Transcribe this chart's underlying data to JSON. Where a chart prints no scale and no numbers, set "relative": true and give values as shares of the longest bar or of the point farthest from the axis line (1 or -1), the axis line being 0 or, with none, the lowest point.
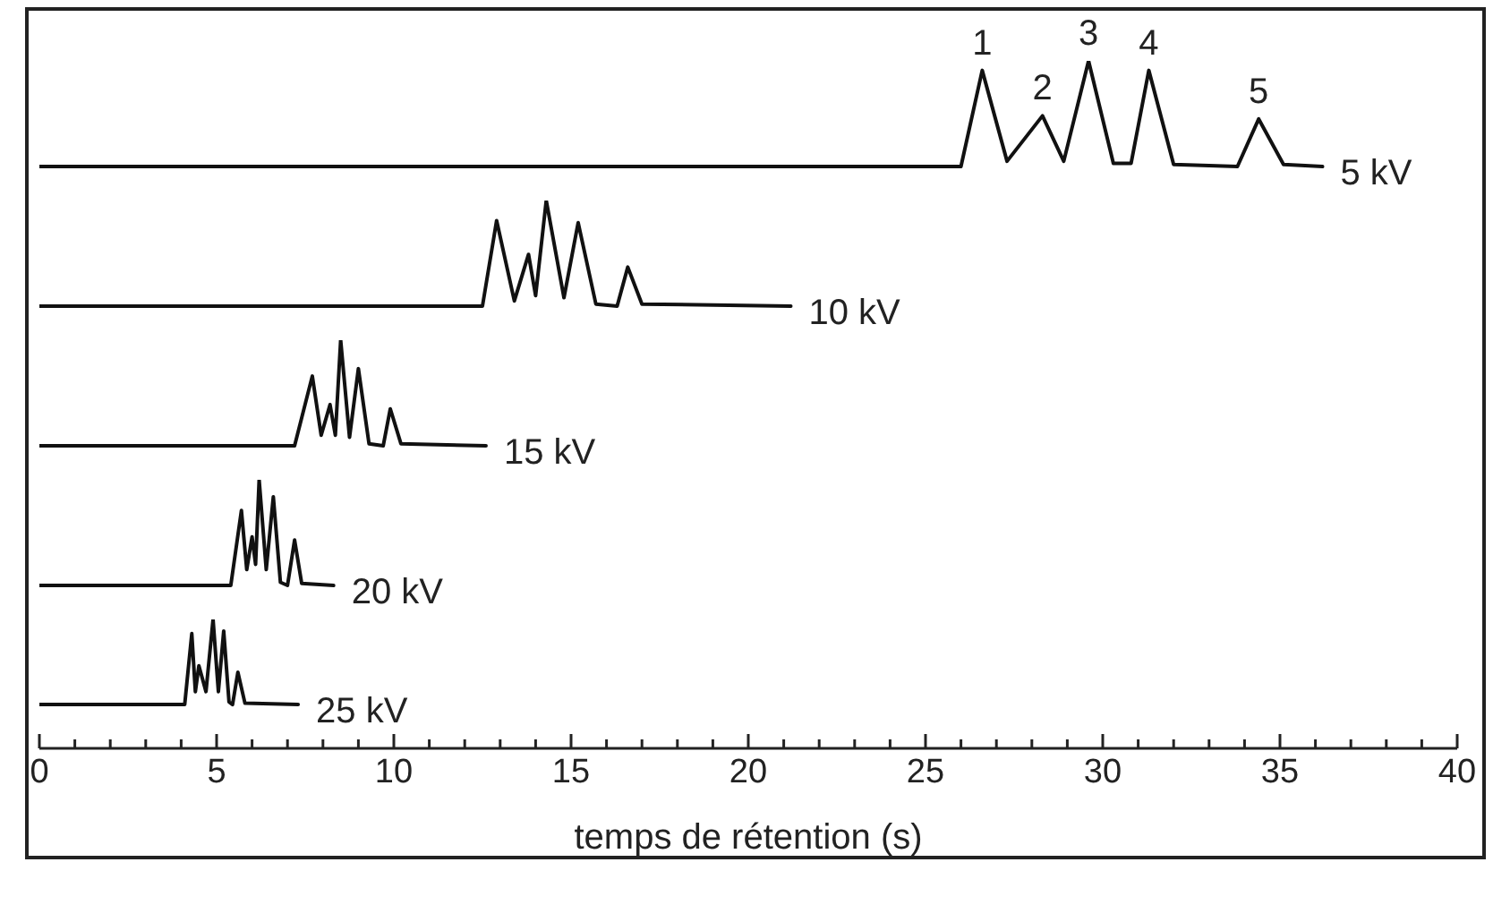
{
  "chart_data": [
    {
      "type": "line",
      "relative": true,
      "xlim": [
        0,
        40
      ],
      "tick_labels": false,
      "marker": "none",
      "series": [
        {
          "name": "5 kV",
          "color": "#111111",
          "x": [
            0,
            26.0,
            26.6,
            27.3,
            28.3,
            28.9,
            29.6,
            30.3,
            30.8,
            31.3,
            32.0,
            33.8,
            34.4,
            35.1,
            36.2
          ],
          "values": [
            0,
            0,
            0.91,
            0.05,
            0.48,
            0.05,
            1,
            0.03,
            0.03,
            0.91,
            0.02,
            0,
            0.45,
            0.02,
            0
          ]
        }
      ],
      "annotations": [
        {
          "text": "1",
          "x": 26.6,
          "y": 0.91
        },
        {
          "text": "2",
          "x": 28.3,
          "y": 0.48
        },
        {
          "text": "3",
          "x": 29.6,
          "y": 1
        },
        {
          "text": "4",
          "x": 31.3,
          "y": 0.91
        },
        {
          "text": "5",
          "x": 34.4,
          "y": 0.45
        }
      ]
    },
    {
      "type": "line",
      "relative": true,
      "xlim": [
        0,
        40
      ],
      "tick_labels": false,
      "marker": "none",
      "series": [
        {
          "name": "10 kV",
          "color": "#111111",
          "x": [
            0,
            12.5,
            12.9,
            13.4,
            13.8,
            14.0,
            14.3,
            14.8,
            15.2,
            15.7,
            16.3,
            16.6,
            17.0,
            21.2
          ],
          "values": [
            0,
            0,
            0.81,
            0.05,
            0.49,
            0.1,
            1,
            0.08,
            0.79,
            0.02,
            0,
            0.37,
            0.02,
            0
          ]
        }
      ]
    },
    {
      "type": "line",
      "relative": true,
      "xlim": [
        0,
        40
      ],
      "tick_labels": false,
      "marker": "none",
      "series": [
        {
          "name": "15 kV",
          "color": "#111111",
          "x": [
            0,
            7.2,
            7.7,
            7.95,
            8.2,
            8.35,
            8.5,
            8.75,
            9.0,
            9.3,
            9.7,
            9.9,
            10.2,
            12.6
          ],
          "values": [
            0,
            0,
            0.66,
            0.1,
            0.39,
            0.1,
            1,
            0.08,
            0.73,
            0.02,
            0,
            0.35,
            0.02,
            0
          ]
        }
      ]
    },
    {
      "type": "line",
      "relative": true,
      "xlim": [
        0,
        40
      ],
      "tick_labels": false,
      "marker": "none",
      "series": [
        {
          "name": "20 kV",
          "color": "#111111",
          "x": [
            0,
            5.4,
            5.7,
            5.85,
            6.0,
            6.1,
            6.2,
            6.4,
            6.6,
            6.8,
            7.0,
            7.2,
            7.4,
            8.3
          ],
          "values": [
            0,
            0,
            0.71,
            0.15,
            0.46,
            0.2,
            1,
            0.15,
            0.84,
            0.03,
            0,
            0.43,
            0.02,
            0
          ]
        }
      ]
    },
    {
      "type": "line",
      "relative": true,
      "xlim": [
        0,
        40
      ],
      "tick_labels": "x",
      "marker": "none",
      "xlabel": "temps de rétention (s)",
      "xticks": [
        0,
        {
          "value": 1,
          "label": null
        },
        {
          "value": 2,
          "label": null
        },
        {
          "value": 3,
          "label": null
        },
        {
          "value": 4,
          "label": null
        },
        5,
        {
          "value": 6,
          "label": null
        },
        {
          "value": 7,
          "label": null
        },
        {
          "value": 8,
          "label": null
        },
        {
          "value": 9,
          "label": null
        },
        10,
        {
          "value": 11,
          "label": null
        },
        {
          "value": 12,
          "label": null
        },
        {
          "value": 13,
          "label": null
        },
        {
          "value": 14,
          "label": null
        },
        15,
        {
          "value": 16,
          "label": null
        },
        {
          "value": 17,
          "label": null
        },
        {
          "value": 18,
          "label": null
        },
        {
          "value": 19,
          "label": null
        },
        20,
        {
          "value": 21,
          "label": null
        },
        {
          "value": 22,
          "label": null
        },
        {
          "value": 23,
          "label": null
        },
        {
          "value": 24,
          "label": null
        },
        25,
        {
          "value": 26,
          "label": null
        },
        {
          "value": 27,
          "label": null
        },
        {
          "value": 28,
          "label": null
        },
        {
          "value": 29,
          "label": null
        },
        30,
        {
          "value": 31,
          "label": null
        },
        {
          "value": 32,
          "label": null
        },
        {
          "value": 33,
          "label": null
        },
        {
          "value": 34,
          "label": null
        },
        35,
        {
          "value": 36,
          "label": null
        },
        {
          "value": 37,
          "label": null
        },
        {
          "value": 38,
          "label": null
        },
        {
          "value": 39,
          "label": null
        },
        40
      ],
      "series": [
        {
          "name": "25 kV",
          "color": "#111111",
          "x": [
            0,
            4.1,
            4.3,
            4.4,
            4.5,
            4.7,
            4.9,
            5.05,
            5.2,
            5.35,
            5.45,
            5.6,
            5.8,
            7.3
          ],
          "values": [
            0.34,
            0.34,
            0.89,
            0.44,
            0.64,
            0.44,
            1,
            0.44,
            0.91,
            0.36,
            0.34,
            0.59,
            0.35,
            0.34
          ]
        }
      ]
    }
  ]
}
